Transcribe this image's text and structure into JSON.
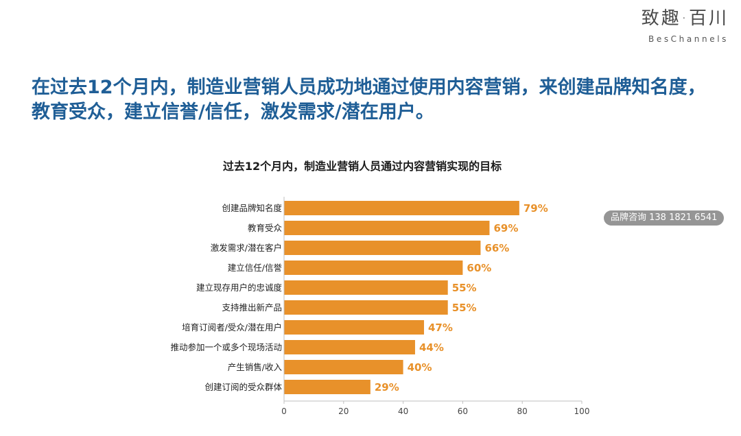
{
  "logo": {
    "cn": "致趣·百川",
    "en": "BesChannels"
  },
  "headline": "在过去12个月内，制造业营销人员成功地通过使用内容营销，来创建品牌知名度， 教育受众，建立信誉/信任，激发需求/潜在用户。",
  "watermark": "品牌咨询 138 1821 6541",
  "colors": {
    "bar": "#e8912a",
    "headline": "#1f5e96"
  },
  "chart_data": {
    "type": "bar",
    "orientation": "horizontal",
    "title": "过去12个月内，制造业营销人员通过内容营销实现的目标",
    "categories": [
      "创建品牌知名度",
      "教育受众",
      "激发需求/潜在客户",
      "建立信任/信誉",
      "建立现存用户的忠诚度",
      "支持推出新产品",
      "培育订阅者/受众/潜在用户",
      "推动参加一个或多个现场活动",
      "产生销售/收入",
      "创建订阅的受众群体"
    ],
    "values": [
      79,
      69,
      66,
      60,
      55,
      55,
      47,
      44,
      40,
      29
    ],
    "value_labels": [
      "79%",
      "69%",
      "66%",
      "60%",
      "55%",
      "55%",
      "47%",
      "44%",
      "40%",
      "29%"
    ],
    "xlim": [
      0,
      100
    ],
    "xticks": [
      0,
      20,
      40,
      60,
      80,
      100
    ],
    "grid": false
  }
}
